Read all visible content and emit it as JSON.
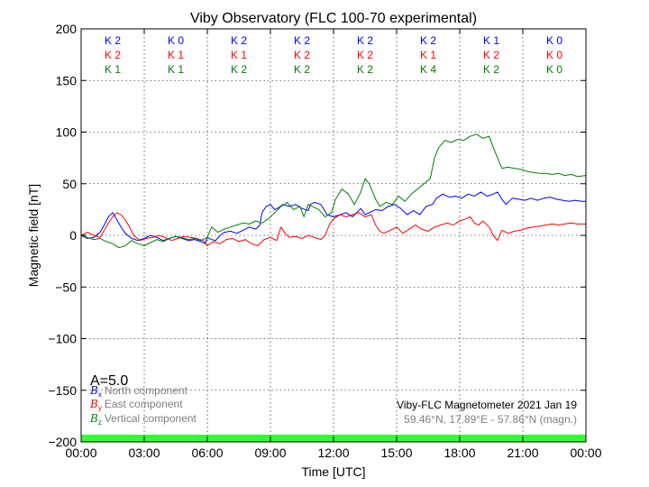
{
  "chart_data": {
    "type": "line",
    "title": "Viby Observatory (FLC 100-70 experimental)",
    "xlabel": "Time [UTC]",
    "ylabel": "Magnetic field [nT]",
    "xlim": [
      0,
      24
    ],
    "ylim": [
      -200,
      200
    ],
    "xticks": [
      0,
      3,
      6,
      9,
      12,
      15,
      18,
      21,
      24
    ],
    "xtick_labels": [
      "00:00",
      "03:00",
      "06:00",
      "09:00",
      "12:00",
      "15:00",
      "18:00",
      "21:00",
      "00:00"
    ],
    "yticks": [
      200,
      150,
      100,
      50,
      0,
      -50,
      -100,
      -150,
      -200
    ],
    "ytick_labels": [
      "200",
      "150",
      "100",
      "50",
      "0",
      "−50",
      "−100",
      "−150",
      "−200"
    ],
    "grid": true,
    "series": [
      {
        "name": "North component",
        "symbol": "B",
        "sub": "x",
        "color": "#0000ff",
        "points": [
          [
            0,
            0
          ],
          [
            0.3,
            -3
          ],
          [
            0.6,
            -2
          ],
          [
            0.9,
            3
          ],
          [
            1.1,
            10
          ],
          [
            1.3,
            18
          ],
          [
            1.5,
            22
          ],
          [
            1.7,
            15
          ],
          [
            1.9,
            8
          ],
          [
            2.1,
            2
          ],
          [
            2.4,
            -3
          ],
          [
            2.7,
            -5
          ],
          [
            3.0,
            -3
          ],
          [
            3.3,
            0
          ],
          [
            3.6,
            -2
          ],
          [
            3.9,
            -5
          ],
          [
            4.2,
            -3
          ],
          [
            4.5,
            -1
          ],
          [
            4.8,
            -3
          ],
          [
            5.1,
            -5
          ],
          [
            5.4,
            -4
          ],
          [
            5.7,
            -6
          ],
          [
            5.9,
            -8
          ],
          [
            6.0,
            -2
          ],
          [
            6.2,
            -4
          ],
          [
            6.4,
            -5
          ],
          [
            6.6,
            0
          ],
          [
            6.8,
            3
          ],
          [
            7.1,
            4
          ],
          [
            7.4,
            2
          ],
          [
            7.7,
            5
          ],
          [
            8.0,
            8
          ],
          [
            8.3,
            6
          ],
          [
            8.5,
            10
          ],
          [
            8.6,
            22
          ],
          [
            8.8,
            28
          ],
          [
            9.0,
            30
          ],
          [
            9.2,
            25
          ],
          [
            9.4,
            27
          ],
          [
            9.6,
            30
          ],
          [
            9.9,
            28
          ],
          [
            10.2,
            30
          ],
          [
            10.5,
            26
          ],
          [
            10.8,
            24
          ],
          [
            10.9,
            30
          ],
          [
            11.1,
            32
          ],
          [
            11.4,
            30
          ],
          [
            11.7,
            20
          ],
          [
            12.0,
            18
          ],
          [
            12.3,
            20
          ],
          [
            12.6,
            22
          ],
          [
            12.9,
            18
          ],
          [
            13.1,
            22
          ],
          [
            13.3,
            26
          ],
          [
            13.5,
            20
          ],
          [
            13.7,
            22
          ],
          [
            14.0,
            25
          ],
          [
            14.3,
            24
          ],
          [
            14.6,
            28
          ],
          [
            14.9,
            30
          ],
          [
            15.2,
            26
          ],
          [
            15.5,
            20
          ],
          [
            15.8,
            24
          ],
          [
            16.1,
            20
          ],
          [
            16.4,
            28
          ],
          [
            16.7,
            30
          ],
          [
            16.9,
            36
          ],
          [
            17.2,
            40
          ],
          [
            17.5,
            37
          ],
          [
            17.8,
            38
          ],
          [
            18.1,
            36
          ],
          [
            18.4,
            40
          ],
          [
            18.7,
            38
          ],
          [
            19.0,
            42
          ],
          [
            19.3,
            38
          ],
          [
            19.6,
            40
          ],
          [
            19.8,
            42
          ],
          [
            20.0,
            35
          ],
          [
            20.2,
            30
          ],
          [
            20.5,
            36
          ],
          [
            20.8,
            35
          ],
          [
            21.1,
            34
          ],
          [
            21.4,
            36
          ],
          [
            21.7,
            34
          ],
          [
            22.0,
            36
          ],
          [
            22.3,
            37
          ],
          [
            22.6,
            35
          ],
          [
            22.9,
            34
          ],
          [
            23.2,
            33
          ],
          [
            23.5,
            34
          ],
          [
            23.8,
            33
          ],
          [
            24.0,
            33
          ]
        ]
      },
      {
        "name": "East component",
        "symbol": "B",
        "sub": "y",
        "color": "#ff0000",
        "points": [
          [
            0,
            0
          ],
          [
            0.3,
            3
          ],
          [
            0.6,
            0
          ],
          [
            0.9,
            -2
          ],
          [
            1.1,
            5
          ],
          [
            1.3,
            12
          ],
          [
            1.5,
            18
          ],
          [
            1.7,
            22
          ],
          [
            1.9,
            20
          ],
          [
            2.1,
            15
          ],
          [
            2.3,
            8
          ],
          [
            2.5,
            0
          ],
          [
            2.8,
            -5
          ],
          [
            3.1,
            -3
          ],
          [
            3.4,
            -2
          ],
          [
            3.7,
            0
          ],
          [
            4.0,
            -2
          ],
          [
            4.3,
            -5
          ],
          [
            4.6,
            -3
          ],
          [
            4.9,
            -1
          ],
          [
            5.2,
            -2
          ],
          [
            5.5,
            -3
          ],
          [
            5.8,
            -5
          ],
          [
            6.0,
            -10
          ],
          [
            6.3,
            -6
          ],
          [
            6.6,
            -8
          ],
          [
            6.9,
            -4
          ],
          [
            7.2,
            -3
          ],
          [
            7.5,
            -6
          ],
          [
            7.8,
            -4
          ],
          [
            8.1,
            -8
          ],
          [
            8.4,
            -10
          ],
          [
            8.7,
            -4
          ],
          [
            9.0,
            -2
          ],
          [
            9.3,
            -5
          ],
          [
            9.5,
            8
          ],
          [
            9.7,
            2
          ],
          [
            9.9,
            -2
          ],
          [
            10.2,
            -1
          ],
          [
            10.5,
            -3
          ],
          [
            10.8,
            0
          ],
          [
            11.1,
            -2
          ],
          [
            11.4,
            -4
          ],
          [
            11.6,
            0
          ],
          [
            11.8,
            10
          ],
          [
            12.0,
            16
          ],
          [
            12.3,
            20
          ],
          [
            12.6,
            18
          ],
          [
            12.9,
            20
          ],
          [
            13.2,
            22
          ],
          [
            13.5,
            18
          ],
          [
            13.8,
            20
          ],
          [
            14.0,
            10
          ],
          [
            14.2,
            4
          ],
          [
            14.4,
            2
          ],
          [
            14.7,
            5
          ],
          [
            15.0,
            8
          ],
          [
            15.3,
            2
          ],
          [
            15.6,
            6
          ],
          [
            15.9,
            10
          ],
          [
            16.2,
            6
          ],
          [
            16.5,
            4
          ],
          [
            16.8,
            8
          ],
          [
            17.1,
            10
          ],
          [
            17.4,
            12
          ],
          [
            17.7,
            10
          ],
          [
            18.0,
            14
          ],
          [
            18.3,
            16
          ],
          [
            18.5,
            18
          ],
          [
            18.7,
            12
          ],
          [
            18.9,
            10
          ],
          [
            19.1,
            14
          ],
          [
            19.4,
            8
          ],
          [
            19.6,
            0
          ],
          [
            19.8,
            -5
          ],
          [
            20.0,
            5
          ],
          [
            20.3,
            2
          ],
          [
            20.6,
            4
          ],
          [
            20.9,
            5
          ],
          [
            21.2,
            7
          ],
          [
            21.5,
            8
          ],
          [
            21.8,
            9
          ],
          [
            22.1,
            10
          ],
          [
            22.4,
            11
          ],
          [
            22.7,
            10
          ],
          [
            23.0,
            11
          ],
          [
            23.3,
            12
          ],
          [
            23.6,
            11
          ],
          [
            24.0,
            11
          ]
        ]
      },
      {
        "name": "Vertical component",
        "symbol": "B",
        "sub": "z",
        "color": "#008000",
        "points": [
          [
            0,
            0
          ],
          [
            0.3,
            -2
          ],
          [
            0.6,
            -4
          ],
          [
            0.9,
            -3
          ],
          [
            1.2,
            -6
          ],
          [
            1.5,
            -8
          ],
          [
            1.8,
            -12
          ],
          [
            2.1,
            -10
          ],
          [
            2.4,
            -5
          ],
          [
            2.7,
            -8
          ],
          [
            3.0,
            -10
          ],
          [
            3.3,
            -7
          ],
          [
            3.6,
            -4
          ],
          [
            3.9,
            -6
          ],
          [
            4.2,
            -3
          ],
          [
            4.5,
            -1
          ],
          [
            4.8,
            -2
          ],
          [
            5.1,
            -4
          ],
          [
            5.4,
            -3
          ],
          [
            5.7,
            -5
          ],
          [
            6.0,
            -2
          ],
          [
            6.2,
            8
          ],
          [
            6.5,
            3
          ],
          [
            6.8,
            6
          ],
          [
            7.1,
            8
          ],
          [
            7.4,
            10
          ],
          [
            7.7,
            12
          ],
          [
            8.0,
            11
          ],
          [
            8.3,
            14
          ],
          [
            8.6,
            12
          ],
          [
            8.9,
            16
          ],
          [
            9.2,
            22
          ],
          [
            9.5,
            28
          ],
          [
            9.8,
            32
          ],
          [
            10.1,
            25
          ],
          [
            10.4,
            28
          ],
          [
            10.6,
            18
          ],
          [
            10.8,
            30
          ],
          [
            11.0,
            28
          ],
          [
            11.3,
            25
          ],
          [
            11.6,
            18
          ],
          [
            11.9,
            22
          ],
          [
            12.1,
            35
          ],
          [
            12.4,
            45
          ],
          [
            12.7,
            40
          ],
          [
            13.0,
            30
          ],
          [
            13.3,
            42
          ],
          [
            13.5,
            55
          ],
          [
            13.7,
            50
          ],
          [
            14.0,
            35
          ],
          [
            14.2,
            28
          ],
          [
            14.5,
            32
          ],
          [
            14.8,
            30
          ],
          [
            15.1,
            38
          ],
          [
            15.4,
            33
          ],
          [
            15.7,
            40
          ],
          [
            16.0,
            45
          ],
          [
            16.3,
            50
          ],
          [
            16.6,
            55
          ],
          [
            16.8,
            75
          ],
          [
            17.0,
            85
          ],
          [
            17.3,
            92
          ],
          [
            17.6,
            90
          ],
          [
            17.9,
            93
          ],
          [
            18.2,
            92
          ],
          [
            18.5,
            96
          ],
          [
            18.8,
            98
          ],
          [
            19.1,
            94
          ],
          [
            19.4,
            96
          ],
          [
            19.6,
            85
          ],
          [
            19.8,
            75
          ],
          [
            20.0,
            65
          ],
          [
            20.3,
            66
          ],
          [
            20.6,
            65
          ],
          [
            20.9,
            64
          ],
          [
            21.2,
            62
          ],
          [
            21.5,
            61
          ],
          [
            21.8,
            60
          ],
          [
            22.1,
            60
          ],
          [
            22.4,
            59
          ],
          [
            22.7,
            60
          ],
          [
            23.0,
            58
          ],
          [
            23.3,
            59
          ],
          [
            23.6,
            57
          ],
          [
            24.0,
            58
          ]
        ]
      }
    ],
    "k_indices": [
      {
        "row": "K 2",
        "col": 0,
        "color": "#0000ff"
      }
    ],
    "k_columns": [
      {
        "blue": "K 2",
        "red": "K 2",
        "green": "K 1"
      },
      {
        "blue": "K 0",
        "red": "K 1",
        "green": "K 1"
      },
      {
        "blue": "K 2",
        "red": "K 1",
        "green": "K 2"
      },
      {
        "blue": "K 2",
        "red": "K 2",
        "green": "K 2"
      },
      {
        "blue": "K 2",
        "red": "K 2",
        "green": "K 2"
      },
      {
        "blue": "K 2",
        "red": "K 1",
        "green": "K 4"
      },
      {
        "blue": "K 1",
        "red": "K 2",
        "green": "K 2"
      },
      {
        "blue": "K 0",
        "red": "K 0",
        "green": "K 0"
      }
    ],
    "a_index": "A=5.0",
    "annotation_line1": "Viby-FLC Magnetometer 2021 Jan 19",
    "annotation_line2": "59.46°N, 17.89°E - 57.86°N (magn.)",
    "band_color": "#33ff33"
  }
}
